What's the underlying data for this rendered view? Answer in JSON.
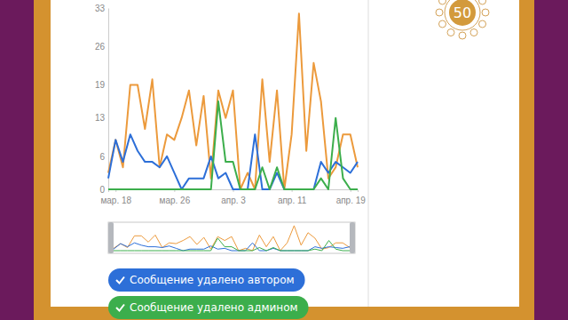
{
  "chart_data": {
    "type": "line",
    "categories": [
      null,
      "мар. 18",
      null,
      null,
      null,
      null,
      null,
      null,
      null,
      "мар. 26",
      null,
      null,
      null,
      null,
      null,
      null,
      null,
      "апр. 3",
      null,
      null,
      null,
      null,
      null,
      null,
      null,
      "апр. 11",
      null,
      null,
      null,
      null,
      null,
      null,
      null,
      "апр. 19",
      null
    ],
    "series": [
      {
        "color": "#ec9a3c",
        "values": [
          3,
          9,
          4,
          19,
          19,
          11,
          20,
          4,
          10,
          9,
          13,
          18,
          8,
          17,
          2,
          18,
          13,
          18,
          0,
          3,
          0,
          20,
          5,
          18,
          0,
          10,
          32,
          7,
          23,
          16,
          2,
          4,
          10,
          10,
          4
        ]
      },
      {
        "name": "Сообщение удалено автором",
        "color": "#2d6fd8",
        "values": [
          2,
          9,
          5,
          10,
          7,
          5,
          5,
          4,
          6,
          3,
          0,
          2,
          2,
          2,
          6,
          2,
          3,
          0,
          0,
          0,
          10,
          0,
          0,
          3,
          0,
          0,
          0,
          0,
          0,
          5,
          3,
          5,
          4,
          3,
          5
        ]
      },
      {
        "name": "Сообщение удалено админом",
        "color": "#3cae4c",
        "values": [
          0,
          0,
          0,
          0,
          0,
          0,
          0,
          0,
          0,
          0,
          0,
          0,
          0,
          0,
          0,
          16,
          5,
          5,
          0,
          0,
          0,
          4,
          0,
          4,
          0,
          0,
          0,
          0,
          0,
          2,
          0,
          13,
          2,
          0,
          0
        ]
      }
    ],
    "ylim": [
      0,
      33
    ],
    "yticks": [
      0,
      6,
      13,
      19,
      26,
      33
    ]
  },
  "badge": {
    "text": "50"
  }
}
